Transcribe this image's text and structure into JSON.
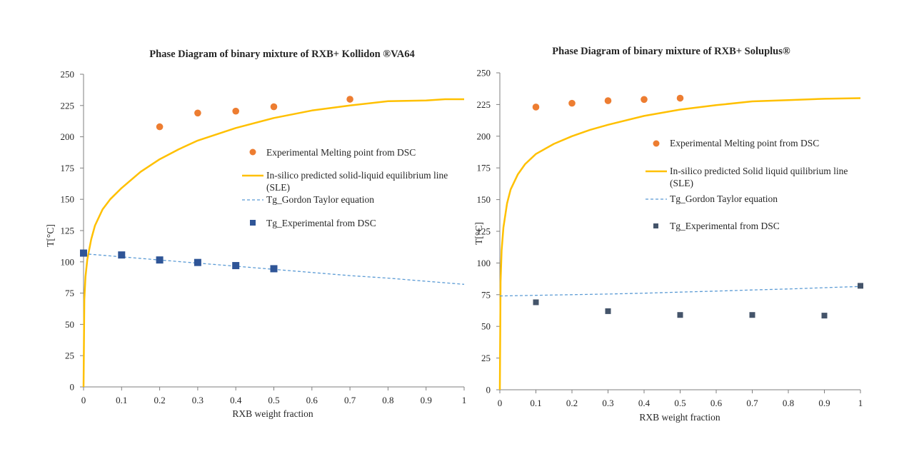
{
  "colors": {
    "melting": "#ED7D31",
    "sle": "#FFC000",
    "gordon_taylor": "#5B9BD5",
    "tg_exp_left": "#2F5597",
    "tg_exp_right": "#44546A",
    "axis": "#7f7f7f"
  },
  "chart_data": [
    {
      "type": "scatter",
      "title": "Phase Diagram of binary mixture  of RXB+ Kollidon ®VA64",
      "xlabel": "RXB  weight  fraction",
      "ylabel": "T[°C]",
      "xlim": [
        0,
        1
      ],
      "ylim": [
        0,
        250
      ],
      "xticks": [
        0,
        0.1,
        0.2,
        0.3,
        0.4,
        0.5,
        0.6,
        0.7,
        0.8,
        0.9,
        1
      ],
      "xtick_labels": [
        "0",
        "0.1",
        "0.2",
        "0.3",
        "0.4",
        "0.5",
        "0.6",
        "0.7",
        "0.8",
        "0.9",
        "1"
      ],
      "yticks": [
        0,
        25,
        50,
        75,
        100,
        125,
        150,
        175,
        200,
        225,
        250
      ],
      "ytick_labels": [
        "0",
        "25",
        "50",
        "75",
        "100",
        "125",
        "150",
        "175",
        "200",
        "225",
        "250"
      ],
      "grid": false,
      "legend_position": "right",
      "series": [
        {
          "name": "Experimental Melting point from DSC",
          "kind": "scatter-circle",
          "x": [
            0.2,
            0.3,
            0.4,
            0.5,
            0.7
          ],
          "y": [
            208,
            219,
            220.5,
            224,
            230
          ]
        },
        {
          "name": "In-silico predicted solid-liquid equilibrium line (SLE)",
          "name_lines": [
            "In-silico predicted solid-liquid equilibrium line",
            "(SLE)"
          ],
          "kind": "line",
          "x": [
            0,
            0.002,
            0.005,
            0.01,
            0.02,
            0.03,
            0.05,
            0.07,
            0.1,
            0.15,
            0.2,
            0.25,
            0.3,
            0.4,
            0.5,
            0.6,
            0.7,
            0.8,
            0.9,
            0.95,
            1
          ],
          "y": [
            0,
            70,
            88,
            102,
            118,
            129,
            142,
            150,
            159,
            172,
            182,
            190,
            197,
            207,
            215,
            221,
            225,
            228.5,
            229,
            230,
            230
          ]
        },
        {
          "name": "Tg_Gordon Taylor equation",
          "kind": "dashed-line",
          "x": [
            0,
            0.1,
            0.2,
            0.3,
            0.4,
            0.5,
            0.6,
            0.7,
            0.8,
            0.9,
            1
          ],
          "y": [
            106.5,
            104,
            101.5,
            99,
            96.5,
            94,
            91.5,
            89,
            87,
            84.5,
            82
          ]
        },
        {
          "name": "Tg_Experimental from DSC",
          "kind": "scatter-square",
          "x": [
            0,
            0.1,
            0.2,
            0.3,
            0.4,
            0.5
          ],
          "y": [
            107,
            105.5,
            101.5,
            99.5,
            97,
            94.5
          ]
        }
      ]
    },
    {
      "type": "scatter",
      "title": "Phase Diagram of binary mixture  of RXB+ Soluplus®",
      "xlabel": "RXB  weight  fraction",
      "ylabel": "T[°C]",
      "xlim": [
        0,
        1
      ],
      "ylim": [
        0,
        250
      ],
      "xticks": [
        0,
        0.1,
        0.2,
        0.3,
        0.4,
        0.5,
        0.6,
        0.7,
        0.8,
        0.9,
        1
      ],
      "xtick_labels": [
        "0",
        "0.1",
        "0.2",
        "0.3",
        "0.4",
        "0.5",
        "0.6",
        "0.7",
        "0.8",
        "0.9",
        "1"
      ],
      "yticks": [
        0,
        25,
        50,
        75,
        100,
        125,
        150,
        175,
        200,
        225,
        250
      ],
      "ytick_labels": [
        "0",
        "25",
        "50",
        "75",
        "100",
        "125",
        "150",
        "175",
        "200",
        "225",
        "250"
      ],
      "grid": false,
      "legend_position": "right",
      "series": [
        {
          "name": "Experimental Melting point from DSC",
          "kind": "scatter-circle",
          "x": [
            0.1,
            0.2,
            0.3,
            0.4,
            0.5
          ],
          "y": [
            223,
            226,
            228,
            229,
            230
          ]
        },
        {
          "name": "In-silico predicted Solid liquid quilibrium line (SLE)",
          "name_lines": [
            "In-silico predicted Solid liquid quilibrium line",
            "(SLE)"
          ],
          "kind": "line",
          "x": [
            0,
            0.002,
            0.005,
            0.01,
            0.02,
            0.03,
            0.05,
            0.07,
            0.1,
            0.15,
            0.2,
            0.25,
            0.3,
            0.4,
            0.5,
            0.6,
            0.7,
            0.8,
            0.9,
            1
          ],
          "y": [
            0,
            85,
            110,
            128,
            147,
            158,
            170,
            178,
            186,
            194,
            200,
            205,
            209,
            216,
            221,
            224.5,
            227.5,
            228.5,
            229.5,
            230
          ]
        },
        {
          "name": "Tg_Gordon Taylor equation",
          "kind": "dashed-line",
          "x": [
            0,
            0.1,
            0.2,
            0.3,
            0.4,
            0.5,
            0.6,
            0.7,
            0.8,
            0.9,
            1
          ],
          "y": [
            74,
            74.5,
            75,
            75.5,
            76.2,
            77,
            77.8,
            78.7,
            79.5,
            80.5,
            81.5
          ]
        },
        {
          "name": "Tg_Experimental from DSC",
          "kind": "scatter-square",
          "x": [
            0.1,
            0.3,
            0.5,
            0.7,
            0.9,
            1
          ],
          "y": [
            69,
            62,
            59,
            59,
            58.5,
            82
          ]
        }
      ]
    }
  ]
}
